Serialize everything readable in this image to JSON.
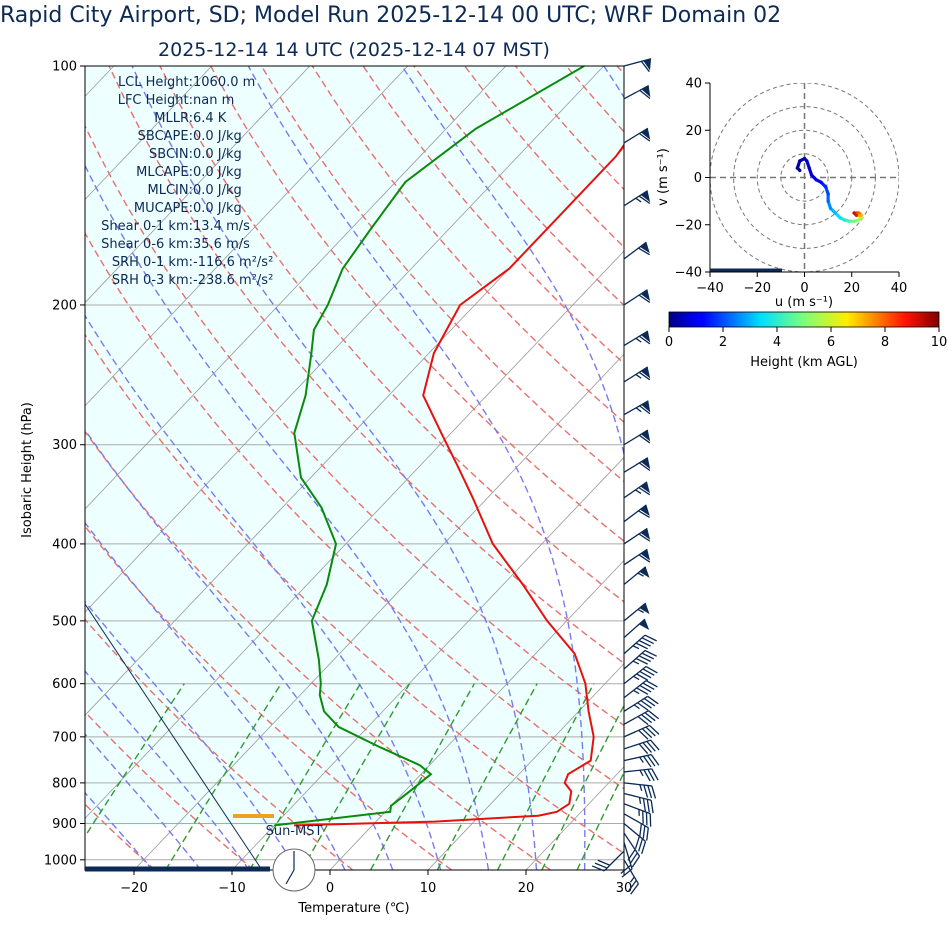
{
  "header": {
    "title": "Rapid City Airport, SD; Model Run 2025-12-14 00 UTC; WRF Domain 02",
    "subtitle": "2025-12-14 14 UTC  (2025-12-14 07 MST)"
  },
  "colors": {
    "text": "#0b2a55",
    "temperature": "#e8100c",
    "dewpoint": "#0a8a0a",
    "dry_adiabat": "#e8706c",
    "moist_adiabat": "#7a7aee",
    "mixing_ratio": "#2e9a2e",
    "isotherm": "#999999",
    "fill": "#eeffff",
    "barb": "#0b2a55",
    "lcl_marker": "#f0a020"
  },
  "indices": [
    "LCL Height: 1060.0 m",
    "LFC Height: nan m",
    "MLLR: 6.4 K",
    "SBCAPE: 0.0 J/kg",
    "SBCIN: 0.0 J/kg",
    "MLCAPE: 0.0 J/kg",
    "MLCIN: 0.0 J/kg",
    "MUCAPE: 0.0 J/kg",
    "Shear 0-1 km: 13.4 m/s",
    "Shear 0-6 km: 35.6 m/s",
    "SRH 0-1 km: -116.6 m²/s²",
    "SRH 0-3 km: -238.6 m²/s²"
  ],
  "sun_label": "Sun-MST",
  "chart_data": [
    {
      "type": "line",
      "name": "skew-t",
      "xlabel": "Temperature (℃)",
      "ylabel": "Isobaric Height (hPa)",
      "xlim": [
        -25,
        30
      ],
      "ylim": [
        1030,
        100
      ],
      "x_ticks": [
        "−20",
        "−10",
        "0",
        "10",
        "20",
        "30"
      ],
      "x_tick_values": [
        -20,
        -10,
        0,
        10,
        20,
        30
      ],
      "y_ticks": [
        "100",
        "200",
        "300",
        "400",
        "500",
        "600",
        "700",
        "800",
        "900",
        "1000"
      ],
      "y_tick_values": [
        100,
        200,
        300,
        400,
        500,
        600,
        700,
        800,
        900,
        1000
      ],
      "temperature": [
        [
          905,
          -8.0
        ],
        [
          895,
          6.0
        ],
        [
          880,
          16.0
        ],
        [
          870,
          17.5
        ],
        [
          850,
          18.0
        ],
        [
          820,
          17.0
        ],
        [
          800,
          15.5
        ],
        [
          780,
          15.0
        ],
        [
          750,
          16.0
        ],
        [
          700,
          14.0
        ],
        [
          650,
          11.0
        ],
        [
          600,
          8.0
        ],
        [
          550,
          4.0
        ],
        [
          500,
          -2.0
        ],
        [
          450,
          -8.0
        ],
        [
          400,
          -15.0
        ],
        [
          350,
          -21.5
        ],
        [
          320,
          -26.0
        ],
        [
          290,
          -31.0
        ],
        [
          260,
          -36.5
        ],
        [
          230,
          -39.5
        ],
        [
          200,
          -41.5
        ],
        [
          180,
          -40.0
        ],
        [
          150,
          -40.0
        ],
        [
          130,
          -40.0
        ],
        [
          115,
          -41.0
        ],
        [
          100,
          -45.0
        ]
      ],
      "dewpoint": [
        [
          905,
          -10.0
        ],
        [
          870,
          0.5
        ],
        [
          855,
          0.0
        ],
        [
          820,
          0.5
        ],
        [
          780,
          1.0
        ],
        [
          760,
          -1.0
        ],
        [
          720,
          -7.0
        ],
        [
          680,
          -13.0
        ],
        [
          650,
          -16.0
        ],
        [
          620,
          -18.0
        ],
        [
          600,
          -19.0
        ],
        [
          560,
          -21.5
        ],
        [
          500,
          -26.0
        ],
        [
          450,
          -28.0
        ],
        [
          400,
          -31.0
        ],
        [
          360,
          -36.0
        ],
        [
          330,
          -41.0
        ],
        [
          290,
          -46.0
        ],
        [
          260,
          -48.5
        ],
        [
          230,
          -52.0
        ],
        [
          215,
          -54.0
        ],
        [
          200,
          -55.0
        ],
        [
          180,
          -57.0
        ],
        [
          160,
          -58.0
        ],
        [
          140,
          -59.0
        ],
        [
          120,
          -57.0
        ],
        [
          100,
          -52.0
        ]
      ],
      "wind_barbs": [
        {
          "p": 1000,
          "u": 6,
          "v": 10
        },
        {
          "p": 975,
          "u": -10,
          "v": 10
        },
        {
          "p": 950,
          "u": 3,
          "v": 10
        },
        {
          "p": 925,
          "u": 8,
          "v": 12
        },
        {
          "p": 900,
          "u": 12,
          "v": 10
        },
        {
          "p": 875,
          "u": 14,
          "v": 8
        },
        {
          "p": 850,
          "u": 16,
          "v": 6
        },
        {
          "p": 825,
          "u": 16,
          "v": 4
        },
        {
          "p": 800,
          "u": 18,
          "v": 2
        },
        {
          "p": 775,
          "u": 18,
          "v": -2
        },
        {
          "p": 750,
          "u": 18,
          "v": -4
        },
        {
          "p": 725,
          "u": 18,
          "v": -6
        },
        {
          "p": 700,
          "u": 18,
          "v": -8
        },
        {
          "p": 675,
          "u": 18,
          "v": -10
        },
        {
          "p": 650,
          "u": 19,
          "v": -12
        },
        {
          "p": 625,
          "u": 18,
          "v": -14
        },
        {
          "p": 600,
          "u": 18,
          "v": -14
        },
        {
          "p": 575,
          "u": 17,
          "v": -15
        },
        {
          "p": 550,
          "u": 17,
          "v": -15
        },
        {
          "p": 525,
          "u": 18,
          "v": -16
        },
        {
          "p": 500,
          "u": 22,
          "v": -18
        },
        {
          "p": 450,
          "u": 22,
          "v": -18
        },
        {
          "p": 425,
          "u": 24,
          "v": -16
        },
        {
          "p": 400,
          "u": 24,
          "v": -16
        },
        {
          "p": 375,
          "u": 24,
          "v": -18
        },
        {
          "p": 350,
          "u": 26,
          "v": -18
        },
        {
          "p": 325,
          "u": 26,
          "v": -16
        },
        {
          "p": 300,
          "u": 26,
          "v": -16
        },
        {
          "p": 275,
          "u": 28,
          "v": -16
        },
        {
          "p": 250,
          "u": 27,
          "v": -17
        },
        {
          "p": 225,
          "u": 28,
          "v": -17
        },
        {
          "p": 200,
          "u": 26,
          "v": -17
        },
        {
          "p": 175,
          "u": 24,
          "v": -18
        },
        {
          "p": 150,
          "u": 28,
          "v": -18
        },
        {
          "p": 125,
          "u": 26,
          "v": -16
        },
        {
          "p": 110,
          "u": 26,
          "v": -14
        },
        {
          "p": 100,
          "u": 30,
          "v": -8
        }
      ]
    },
    {
      "type": "scatter",
      "name": "hodograph",
      "xlabel": "u (m s⁻¹)",
      "ylabel": "v (m s⁻¹)",
      "xlim": [
        -40,
        40
      ],
      "ylim": [
        -40,
        40
      ],
      "x_ticks": [
        "−40",
        "−20",
        "0",
        "20",
        "40"
      ],
      "x_tick_values": [
        -40,
        -20,
        0,
        20,
        40
      ],
      "y_ticks": [
        "40",
        "20",
        "0",
        "−20",
        "−40"
      ],
      "y_tick_values": [
        40,
        20,
        0,
        -20,
        -40
      ],
      "rings": [
        10,
        20,
        30,
        40
      ],
      "points": [
        {
          "u": -2,
          "v": 3,
          "h": 0.1
        },
        {
          "u": -3,
          "v": 4,
          "h": 0.2
        },
        {
          "u": -2,
          "v": 7,
          "h": 0.3
        },
        {
          "u": 0,
          "v": 8,
          "h": 0.4
        },
        {
          "u": 1,
          "v": 7,
          "h": 0.5
        },
        {
          "u": 2,
          "v": 4,
          "h": 0.7
        },
        {
          "u": 3,
          "v": 1,
          "h": 0.9
        },
        {
          "u": 5,
          "v": -1,
          "h": 1.1
        },
        {
          "u": 7,
          "v": -2,
          "h": 1.3
        },
        {
          "u": 9,
          "v": -4,
          "h": 1.6
        },
        {
          "u": 10,
          "v": -7,
          "h": 1.9
        },
        {
          "u": 10,
          "v": -10,
          "h": 2.2
        },
        {
          "u": 11,
          "v": -13,
          "h": 2.6
        },
        {
          "u": 13,
          "v": -15,
          "h": 3.0
        },
        {
          "u": 15,
          "v": -17,
          "h": 3.4
        },
        {
          "u": 17,
          "v": -18,
          "h": 3.8
        },
        {
          "u": 19,
          "v": -18.5,
          "h": 4.3
        },
        {
          "u": 21,
          "v": -18.5,
          "h": 4.8
        },
        {
          "u": 23,
          "v": -18,
          "h": 5.3
        },
        {
          "u": 24,
          "v": -17,
          "h": 5.8
        },
        {
          "u": 24,
          "v": -16,
          "h": 6.3
        },
        {
          "u": 23,
          "v": -16,
          "h": 6.8
        },
        {
          "u": 24,
          "v": -16,
          "h": 7.3
        },
        {
          "u": 23,
          "v": -15,
          "h": 7.8
        },
        {
          "u": 22,
          "v": -15,
          "h": 8.3
        },
        {
          "u": 22,
          "v": -16,
          "h": 8.8
        },
        {
          "u": 21,
          "v": -15,
          "h": 9.3
        }
      ],
      "colorbar": {
        "label": "Height (km AGL)",
        "range": [
          0,
          10
        ],
        "ticks": [
          "0",
          "2",
          "4",
          "6",
          "8",
          "10"
        ],
        "tick_values": [
          0,
          2,
          4,
          6,
          8,
          10
        ]
      }
    }
  ]
}
